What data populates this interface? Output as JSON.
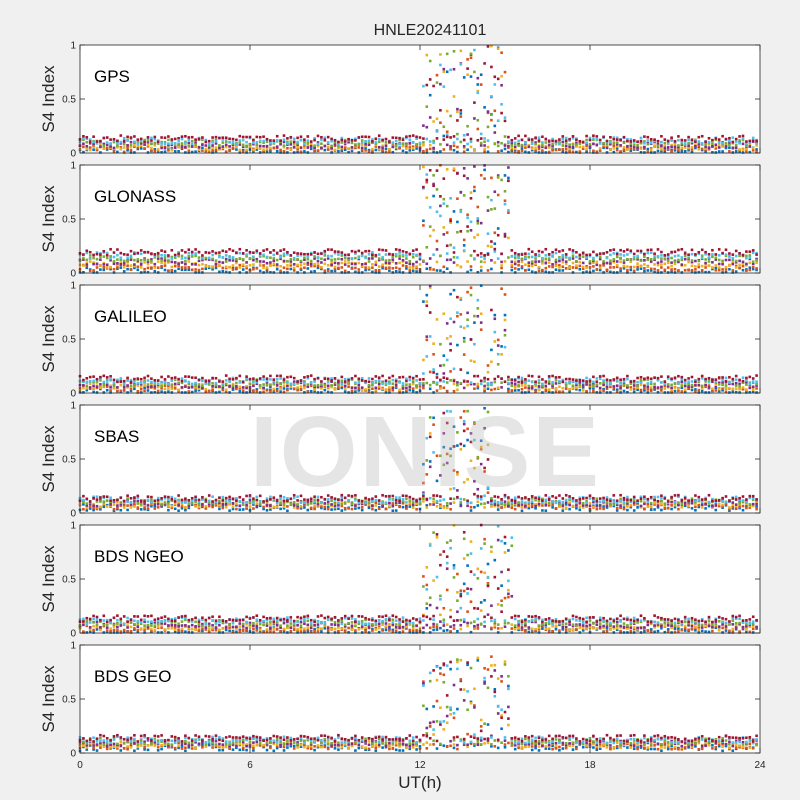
{
  "figure": {
    "title": "HNLE20241101"
  },
  "watermark": {
    "text": "IONISE"
  },
  "chart_data": {
    "type": "scatter",
    "title": "HNLE20241101",
    "xlabel": "UT(h)",
    "ylabel": "S4 Index",
    "xlim": [
      0,
      24
    ],
    "ylim": [
      0,
      1
    ],
    "xticks": [
      0,
      6,
      12,
      18,
      24
    ],
    "yticks": [
      0,
      0.5,
      1
    ],
    "yticklabels": [
      "0",
      "0.5",
      "1"
    ],
    "grid": false,
    "colors": [
      "#0072BD",
      "#D95319",
      "#EDB120",
      "#7E2F8E",
      "#77AC30",
      "#4DBEEE",
      "#A2142F"
    ],
    "panels": [
      {
        "label": "GPS",
        "baseline": [
          0.02,
          0.15
        ],
        "disturbed_window": [
          12.0,
          15.0
        ],
        "peak_s4": 1.0
      },
      {
        "label": "GLONASS",
        "baseline": [
          0.02,
          0.22
        ],
        "disturbed_window": [
          12.0,
          15.2
        ],
        "peak_s4": 1.0
      },
      {
        "label": "GALILEO",
        "baseline": [
          0.02,
          0.15
        ],
        "disturbed_window": [
          12.0,
          15.0
        ],
        "peak_s4": 1.0
      },
      {
        "label": "SBAS",
        "baseline": [
          0.05,
          0.15
        ],
        "disturbed_window": [
          12.0,
          14.5
        ],
        "peak_s4": 1.0
      },
      {
        "label": "BDS NGEO",
        "baseline": [
          0.02,
          0.15
        ],
        "disturbed_window": [
          12.0,
          15.3
        ],
        "peak_s4": 1.0
      },
      {
        "label": "BDS GEO",
        "baseline": [
          0.05,
          0.15
        ],
        "disturbed_window": [
          12.0,
          15.2
        ],
        "peak_s4": 0.9
      }
    ]
  }
}
